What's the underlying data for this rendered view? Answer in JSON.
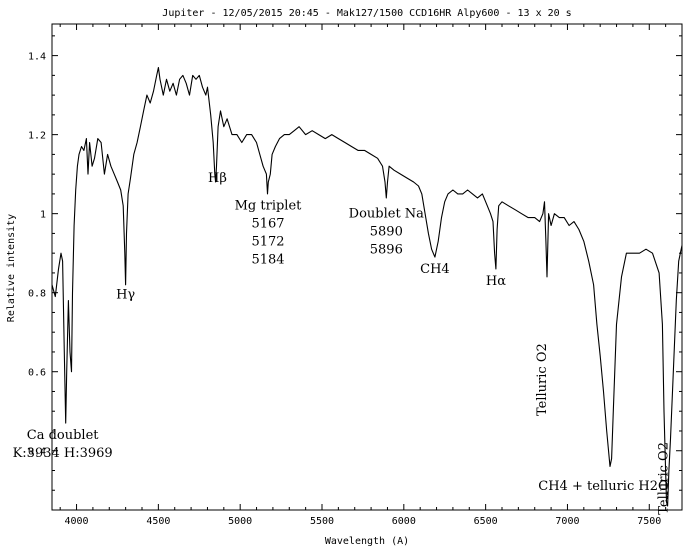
{
  "chart_data": {
    "type": "line",
    "title": "Jupiter - 12/05/2015 20:45 - Mak127/1500 CCD16HR Alpy600 - 13 x 20 s",
    "xlabel": "Wavelength (A)",
    "ylabel": "Relative intensity",
    "xlim": [
      3850,
      7700
    ],
    "ylim": [
      0.25,
      1.48
    ],
    "x_ticks": [
      4000,
      4500,
      5000,
      5500,
      6000,
      6500,
      7000,
      7500
    ],
    "x_tick_labels": [
      "4000",
      "4500",
      "5000",
      "5500",
      "6000",
      "6500",
      "7000",
      "7500"
    ],
    "y_ticks": [
      0.4,
      0.6,
      0.8,
      1.0,
      1.2,
      1.4
    ],
    "y_tick_labels": [
      "0.4",
      "0.6",
      "0.8",
      "1",
      "1.2",
      "1.4"
    ],
    "series": [
      {
        "x": [
          3850,
          3870,
          3890,
          3905,
          3915,
          3925,
          3934,
          3940,
          3950,
          3960,
          3969,
          3975,
          3985,
          3995,
          4005,
          4015,
          4030,
          4045,
          4060,
          4070,
          4080,
          4095,
          4110,
          4130,
          4150,
          4170,
          4190,
          4210,
          4230,
          4250,
          4270,
          4285,
          4295,
          4300,
          4305,
          4315,
          4330,
          4350,
          4370,
          4390,
          4410,
          4430,
          4450,
          4470,
          4490,
          4500,
          4510,
          4530,
          4550,
          4570,
          4590,
          4610,
          4630,
          4650,
          4670,
          4690,
          4710,
          4730,
          4750,
          4770,
          4790,
          4800,
          4820,
          4835,
          4845,
          4850,
          4855,
          4865,
          4880,
          4900,
          4920,
          4950,
          4980,
          5010,
          5040,
          5070,
          5100,
          5120,
          5140,
          5160,
          5167,
          5172,
          5184,
          5195,
          5215,
          5240,
          5270,
          5300,
          5330,
          5360,
          5400,
          5440,
          5480,
          5520,
          5560,
          5600,
          5640,
          5680,
          5720,
          5760,
          5800,
          5840,
          5870,
          5885,
          5893,
          5900,
          5910,
          5940,
          5980,
          6020,
          6060,
          6090,
          6110,
          6130,
          6150,
          6170,
          6190,
          6210,
          6230,
          6250,
          6270,
          6300,
          6330,
          6360,
          6390,
          6420,
          6450,
          6480,
          6510,
          6530,
          6545,
          6555,
          6563,
          6570,
          6580,
          6600,
          6640,
          6680,
          6720,
          6760,
          6800,
          6830,
          6850,
          6860,
          6868,
          6875,
          6885,
          6900,
          6920,
          6950,
          6980,
          7010,
          7040,
          7070,
          7100,
          7130,
          7160,
          7180,
          7200,
          7220,
          7240,
          7260,
          7270,
          7280,
          7300,
          7330,
          7360,
          7400,
          7440,
          7480,
          7520,
          7560,
          7580,
          7590,
          7600,
          7605,
          7612,
          7620,
          7630,
          7645,
          7665,
          7680,
          7700
        ],
        "y": [
          0.82,
          0.79,
          0.86,
          0.9,
          0.88,
          0.65,
          0.47,
          0.6,
          0.78,
          0.65,
          0.6,
          0.8,
          0.97,
          1.06,
          1.12,
          1.15,
          1.17,
          1.16,
          1.19,
          1.1,
          1.18,
          1.12,
          1.14,
          1.19,
          1.18,
          1.1,
          1.15,
          1.12,
          1.1,
          1.08,
          1.06,
          1.02,
          0.9,
          0.82,
          0.95,
          1.05,
          1.09,
          1.15,
          1.18,
          1.22,
          1.26,
          1.3,
          1.28,
          1.31,
          1.35,
          1.37,
          1.34,
          1.3,
          1.34,
          1.31,
          1.33,
          1.3,
          1.34,
          1.35,
          1.33,
          1.3,
          1.35,
          1.34,
          1.35,
          1.32,
          1.3,
          1.32,
          1.25,
          1.18,
          1.1,
          1.08,
          1.12,
          1.22,
          1.26,
          1.22,
          1.24,
          1.2,
          1.2,
          1.18,
          1.2,
          1.2,
          1.18,
          1.15,
          1.12,
          1.1,
          1.05,
          1.08,
          1.1,
          1.15,
          1.17,
          1.19,
          1.2,
          1.2,
          1.21,
          1.22,
          1.2,
          1.21,
          1.2,
          1.19,
          1.2,
          1.19,
          1.18,
          1.17,
          1.16,
          1.16,
          1.15,
          1.14,
          1.12,
          1.08,
          1.04,
          1.08,
          1.12,
          1.11,
          1.1,
          1.09,
          1.08,
          1.07,
          1.05,
          1.0,
          0.95,
          0.91,
          0.89,
          0.93,
          0.99,
          1.03,
          1.05,
          1.06,
          1.05,
          1.05,
          1.06,
          1.05,
          1.04,
          1.05,
          1.02,
          1.0,
          0.98,
          0.9,
          0.86,
          0.96,
          1.02,
          1.03,
          1.02,
          1.01,
          1.0,
          0.99,
          0.99,
          0.98,
          1.0,
          1.03,
          0.93,
          0.84,
          1.0,
          0.97,
          1.0,
          0.99,
          0.99,
          0.97,
          0.98,
          0.96,
          0.93,
          0.88,
          0.82,
          0.72,
          0.64,
          0.55,
          0.45,
          0.36,
          0.38,
          0.5,
          0.72,
          0.84,
          0.9,
          0.9,
          0.9,
          0.91,
          0.9,
          0.85,
          0.72,
          0.5,
          0.35,
          0.27,
          0.26,
          0.35,
          0.43,
          0.58,
          0.78,
          0.88,
          0.92
        ]
      }
    ],
    "annotations": [
      {
        "lines": [
          "Ca doublet",
          "K:3934 H:3969"
        ],
        "x": 3915,
        "y": 0.43
      },
      {
        "lines": [
          "Hγ"
        ],
        "x": 4300,
        "y": 0.785
      },
      {
        "lines": [
          "Hβ"
        ],
        "x": 4861,
        "y": 1.08
      },
      {
        "lines": [
          "Mg triplet",
          "5167",
          "5172",
          "5184"
        ],
        "x": 5170,
        "y": 1.01
      },
      {
        "lines": [
          "Doublet Na",
          "5890",
          "5896"
        ],
        "x": 5893,
        "y": 0.99
      },
      {
        "lines": [
          "CH4"
        ],
        "x": 6190,
        "y": 0.85
      },
      {
        "lines": [
          "Hα"
        ],
        "x": 6563,
        "y": 0.82
      },
      {
        "lines": [
          "CH4 + telluric H2O"
        ],
        "x": 7220,
        "y": 0.3
      },
      {
        "lines": [
          "Telluric O2"
        ],
        "x": 6868,
        "y": 0.58,
        "rotated": true
      },
      {
        "lines": [
          "Telluric O2"
        ],
        "x": 7610,
        "y": 0.33,
        "rotated": true
      }
    ],
    "grid": false
  }
}
